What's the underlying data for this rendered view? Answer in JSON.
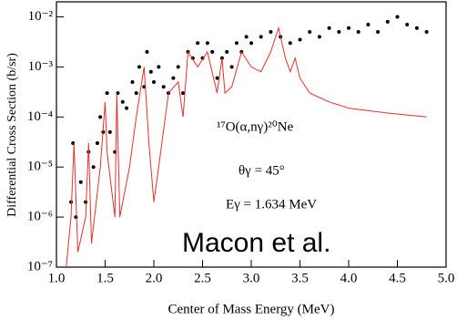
{
  "chart_data": {
    "type": "scatter",
    "x_label": "Center of Mass Energy (MeV)",
    "y_label": "Differential Cross Section (b/sr)",
    "log_y": true,
    "xlim": [
      1.0,
      5.0
    ],
    "ylim": [
      1e-07,
      0.02
    ],
    "xticks": [
      {
        "value": 1.0,
        "label": "1.0"
      },
      {
        "value": 1.5,
        "label": "1.5"
      },
      {
        "value": 2.0,
        "label": "2.0"
      },
      {
        "value": 2.5,
        "label": "2.5"
      },
      {
        "value": 3.0,
        "label": "3.0"
      },
      {
        "value": 3.5,
        "label": "3.5"
      },
      {
        "value": 4.0,
        "label": "4.0"
      },
      {
        "value": 4.5,
        "label": "4.5"
      },
      {
        "value": 5.0,
        "label": "5.0"
      }
    ],
    "yticks": [
      {
        "value": 1e-07,
        "label": "10⁻⁷"
      },
      {
        "value": 1e-06,
        "label": "10⁻⁶"
      },
      {
        "value": 1e-05,
        "label": "10⁻⁵"
      },
      {
        "value": 0.0001,
        "label": "10⁻⁴"
      },
      {
        "value": 0.001,
        "label": "10⁻³"
      },
      {
        "value": 0.01,
        "label": "10⁻²"
      }
    ],
    "annotations": [
      "¹⁷O(α,nγ)²⁰Ne",
      "θγ = 45°",
      "Eγ = 1.634 MeV",
      "Macon et al."
    ],
    "series": [
      {
        "style": "points",
        "color": "#000000",
        "x": [
          1.15,
          1.17,
          1.2,
          1.25,
          1.3,
          1.33,
          1.38,
          1.42,
          1.45,
          1.48,
          1.52,
          1.55,
          1.6,
          1.63,
          1.68,
          1.72,
          1.78,
          1.82,
          1.85,
          1.9,
          1.93,
          1.97,
          2.0,
          2.05,
          2.1,
          2.15,
          2.2,
          2.25,
          2.3,
          2.35,
          2.4,
          2.45,
          2.5,
          2.55,
          2.6,
          2.65,
          2.7,
          2.75,
          2.8,
          2.85,
          2.9,
          2.95,
          3.0,
          3.1,
          3.2,
          3.3,
          3.4,
          3.5,
          3.6,
          3.7,
          3.8,
          3.9,
          4.0,
          4.1,
          4.2,
          4.3,
          4.4,
          4.5,
          4.6,
          4.7,
          4.8
        ],
        "values": [
          2e-06,
          3e-05,
          1e-06,
          5e-06,
          2e-06,
          2e-05,
          1e-05,
          3e-05,
          0.0001,
          5e-05,
          0.0003,
          5e-05,
          2e-05,
          0.0003,
          0.0002,
          0.00015,
          0.0005,
          0.0003,
          0.001,
          0.0004,
          0.002,
          0.0008,
          0.0005,
          0.001,
          0.0004,
          0.0003,
          0.0006,
          0.001,
          0.0003,
          0.002,
          0.0015,
          0.003,
          0.0015,
          0.003,
          0.002,
          0.0006,
          0.0015,
          0.002,
          0.001,
          0.003,
          0.002,
          0.004,
          0.003,
          0.004,
          0.005,
          0.004,
          0.003,
          0.0035,
          0.005,
          0.004,
          0.006,
          0.005,
          0.006,
          0.005,
          0.007,
          0.005,
          0.008,
          0.01,
          0.007,
          0.006,
          0.005
        ]
      },
      {
        "style": "line",
        "color": "#e8302a",
        "x": [
          1.1,
          1.15,
          1.18,
          1.22,
          1.3,
          1.33,
          1.36,
          1.45,
          1.5,
          1.52,
          1.6,
          1.62,
          1.65,
          1.75,
          1.82,
          1.9,
          1.95,
          2.0,
          2.05,
          2.15,
          2.25,
          2.3,
          2.35,
          2.45,
          2.55,
          2.65,
          2.7,
          2.73,
          2.8,
          2.9,
          3.0,
          3.1,
          3.2,
          3.28,
          3.35,
          3.4,
          3.45,
          3.5,
          3.6,
          3.8,
          4.0,
          4.4,
          4.8
        ],
        "values": [
          1e-07,
          1e-06,
          3e-05,
          2e-07,
          1e-06,
          3e-05,
          3e-07,
          1e-05,
          0.0002,
          2e-05,
          1e-06,
          0.0003,
          1e-06,
          1e-05,
          0.0001,
          0.001,
          3e-05,
          2e-06,
          1e-05,
          0.0003,
          0.0005,
          0.0001,
          0.002,
          0.001,
          0.002,
          0.0003,
          0.0015,
          0.0003,
          0.0004,
          0.002,
          0.001,
          0.0008,
          0.002,
          0.006,
          0.0015,
          0.0008,
          0.0015,
          0.0006,
          0.0003,
          0.0002,
          0.00015,
          0.00012,
          0.0001
        ]
      }
    ]
  }
}
